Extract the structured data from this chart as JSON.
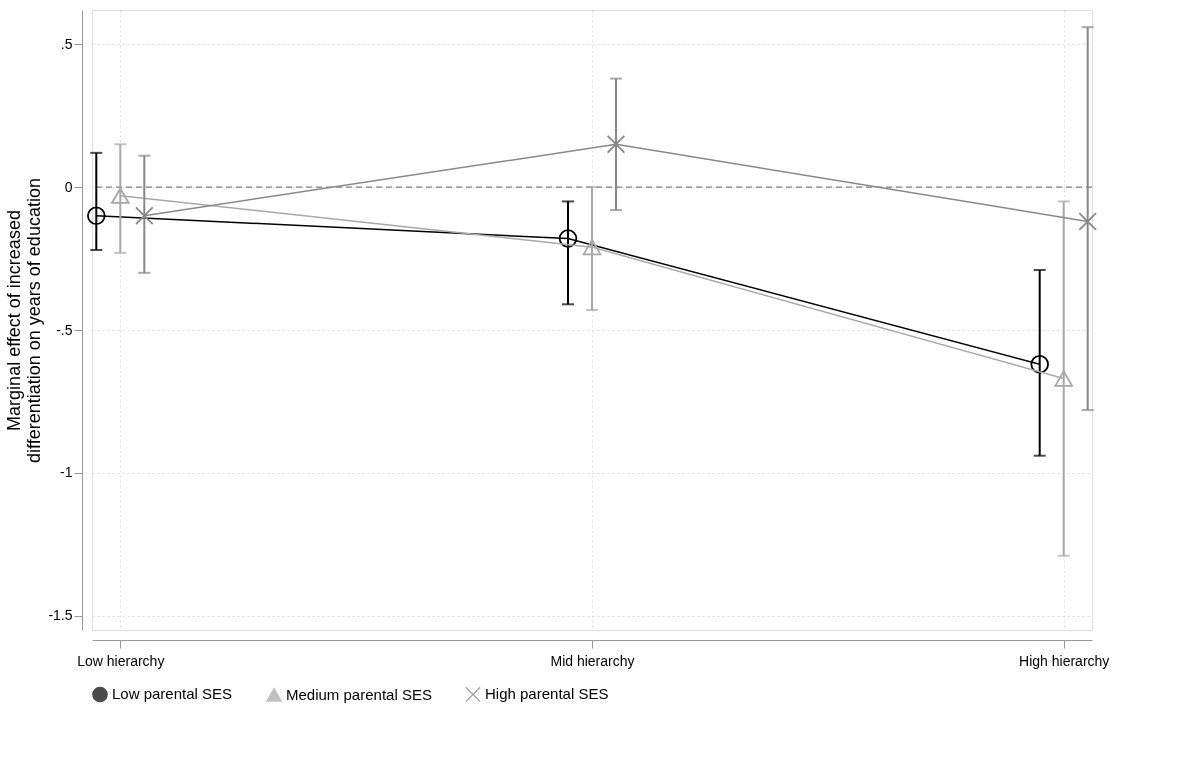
{
  "chart_data": {
    "type": "line",
    "ylabel": "Marginal effect of increased differentiation on years of education",
    "categories": [
      "Low hierarchy",
      "Mid hierarchy",
      "High hierarchy"
    ],
    "series": [
      {
        "name": "Low parental SES",
        "color": "#000000",
        "marker": "circle",
        "values": [
          -0.1,
          -0.18,
          -0.62
        ],
        "errors": [
          [
            -0.22,
            0.12
          ],
          [
            -0.41,
            -0.05
          ],
          [
            -0.94,
            -0.29
          ]
        ]
      },
      {
        "name": "Medium parental SES",
        "color": "#a8a8a8",
        "marker": "triangle",
        "values": [
          -0.03,
          -0.21,
          -0.67
        ],
        "errors": [
          [
            -0.23,
            0.15
          ],
          [
            -0.43,
            0.0
          ],
          [
            -1.29,
            -0.05
          ]
        ]
      },
      {
        "name": "High parental SES",
        "color": "#888888",
        "marker": "cross",
        "values": [
          -0.1,
          0.15,
          -0.12
        ],
        "errors": [
          [
            -0.3,
            0.11
          ],
          [
            -0.08,
            0.38
          ],
          [
            -0.78,
            0.56
          ]
        ]
      }
    ],
    "ylim": [
      -1.55,
      0.62
    ],
    "yticks": [
      {
        "value": 0.5,
        "label": ".5"
      },
      0,
      {
        "value": -0.5,
        "label": "-.5"
      },
      -1,
      {
        "value": -1.5,
        "label": "-1.5"
      }
    ],
    "ref_lines": [
      {
        "axis": "y",
        "value": 0,
        "color": "#808080",
        "line_style": "dashed"
      }
    ],
    "grid": true,
    "legend": "bottom",
    "line_style": "solid"
  }
}
